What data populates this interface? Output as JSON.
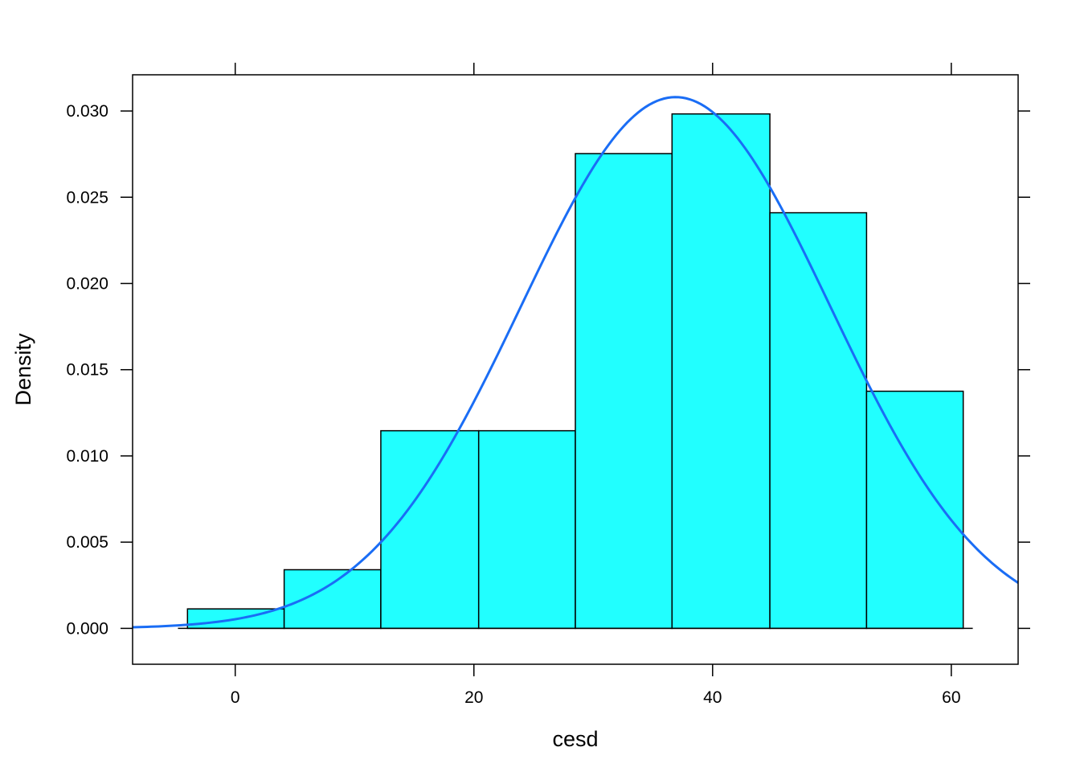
{
  "chart_data": {
    "type": "bar",
    "subtype": "histogram-with-density-curve",
    "xlabel": "cesd",
    "ylabel": "Density",
    "xlim": [
      -8.6,
      65.6
    ],
    "ylim": [
      -0.00208,
      0.0321
    ],
    "x_ticks": [
      0,
      20,
      40,
      60
    ],
    "x_tick_labels": [
      "0",
      "20",
      "40",
      "60"
    ],
    "y_ticks": [
      0,
      0.005,
      0.01,
      0.015,
      0.02,
      0.025,
      0.03
    ],
    "y_tick_labels": [
      "0.000",
      "0.005",
      "0.010",
      "0.015",
      "0.020",
      "0.025",
      "0.030"
    ],
    "grid": false,
    "bar_color": "#21FFFF",
    "bar_edge_color": "#000000",
    "bins": [
      {
        "start": -4.0,
        "end": 4.1,
        "density": 0.00113
      },
      {
        "start": 4.1,
        "end": 12.2,
        "density": 0.0034
      },
      {
        "start": 12.2,
        "end": 20.4,
        "density": 0.01146
      },
      {
        "start": 20.4,
        "end": 28.5,
        "density": 0.01146
      },
      {
        "start": 28.5,
        "end": 36.6,
        "density": 0.02753
      },
      {
        "start": 36.6,
        "end": 44.8,
        "density": 0.02983
      },
      {
        "start": 44.8,
        "end": 52.9,
        "density": 0.0241
      },
      {
        "start": 52.9,
        "end": 61.0,
        "density": 0.01375
      }
    ],
    "baseline": {
      "x_start": -4.8,
      "x_end": 61.8,
      "y": 0
    },
    "density_curve": {
      "type": "normal",
      "mean": 36.9,
      "sd": 12.95,
      "color": "#1A6DF5",
      "x_range": [
        -8.6,
        65.6
      ]
    }
  }
}
